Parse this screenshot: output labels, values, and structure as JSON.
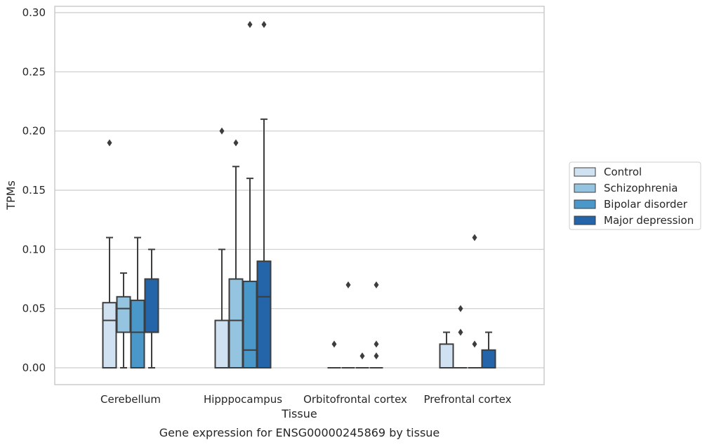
{
  "chart_data": {
    "type": "box",
    "caption": "Gene expression for ENSG00000245869 by tissue",
    "xlabel": "Tissue",
    "ylabel": "TPMs",
    "ylim": [
      -0.014,
      0.305
    ],
    "yticks": [
      0.0,
      0.05,
      0.1,
      0.15,
      0.2,
      0.25,
      0.3
    ],
    "ytick_labels": [
      "0.00",
      "0.05",
      "0.10",
      "0.15",
      "0.20",
      "0.25",
      "0.30"
    ],
    "grid": "horizontal",
    "legend_position": "right",
    "categories": [
      "Cerebellum",
      "Hipppocampus",
      "Orbitofrontal cortex",
      "Prefrontal cortex"
    ],
    "series": [
      {
        "name": "Control",
        "color": "#d0e1f2",
        "boxes": [
          {
            "whislo": 0.0,
            "q1": 0.0,
            "med": 0.04,
            "q3": 0.055,
            "whishi": 0.11,
            "fliers": [
              0.19
            ]
          },
          {
            "whislo": 0.0,
            "q1": 0.0,
            "med": 0.0,
            "q3": 0.04,
            "whishi": 0.1,
            "fliers": [
              0.2
            ]
          },
          {
            "whislo": 0.0,
            "q1": 0.0,
            "med": 0.0,
            "q3": 0.0,
            "whishi": 0.0,
            "fliers": [
              0.02
            ]
          },
          {
            "whislo": 0.0,
            "q1": 0.0,
            "med": 0.0,
            "q3": 0.02,
            "whishi": 0.03,
            "fliers": []
          }
        ]
      },
      {
        "name": "Schizophrenia",
        "color": "#94c4df",
        "boxes": [
          {
            "whislo": 0.0,
            "q1": 0.03,
            "med": 0.05,
            "q3": 0.06,
            "whishi": 0.08,
            "fliers": []
          },
          {
            "whislo": 0.0,
            "q1": 0.0,
            "med": 0.04,
            "q3": 0.075,
            "whishi": 0.17,
            "fliers": [
              0.19
            ]
          },
          {
            "whislo": 0.0,
            "q1": 0.0,
            "med": 0.0,
            "q3": 0.0,
            "whishi": 0.0,
            "fliers": [
              0.07
            ]
          },
          {
            "whislo": 0.0,
            "q1": 0.0,
            "med": 0.0,
            "q3": 0.0,
            "whishi": 0.0,
            "fliers": [
              0.05,
              0.03
            ]
          }
        ]
      },
      {
        "name": "Bipolar disorder",
        "color": "#4a98c9",
        "boxes": [
          {
            "whislo": 0.0,
            "q1": 0.0,
            "med": 0.03,
            "q3": 0.057,
            "whishi": 0.11,
            "fliers": []
          },
          {
            "whislo": 0.0,
            "q1": 0.0,
            "med": 0.015,
            "q3": 0.073,
            "whishi": 0.16,
            "fliers": [
              0.29
            ]
          },
          {
            "whislo": 0.0,
            "q1": 0.0,
            "med": 0.0,
            "q3": 0.0,
            "whishi": 0.0,
            "fliers": [
              0.01
            ]
          },
          {
            "whislo": 0.0,
            "q1": 0.0,
            "med": 0.0,
            "q3": 0.0,
            "whishi": 0.0,
            "fliers": [
              0.11,
              0.02
            ]
          }
        ]
      },
      {
        "name": "Major depression",
        "color": "#2464a8",
        "boxes": [
          {
            "whislo": 0.0,
            "q1": 0.03,
            "med": 0.03,
            "q3": 0.075,
            "whishi": 0.1,
            "fliers": []
          },
          {
            "whislo": 0.0,
            "q1": 0.0,
            "med": 0.06,
            "q3": 0.09,
            "whishi": 0.21,
            "fliers": [
              0.29
            ]
          },
          {
            "whislo": 0.0,
            "q1": 0.0,
            "med": 0.0,
            "q3": 0.0,
            "whishi": 0.0,
            "fliers": [
              0.07,
              0.02,
              0.01
            ]
          },
          {
            "whislo": 0.0,
            "q1": 0.0,
            "med": 0.0,
            "q3": 0.015,
            "whishi": 0.03,
            "fliers": []
          }
        ]
      }
    ]
  }
}
